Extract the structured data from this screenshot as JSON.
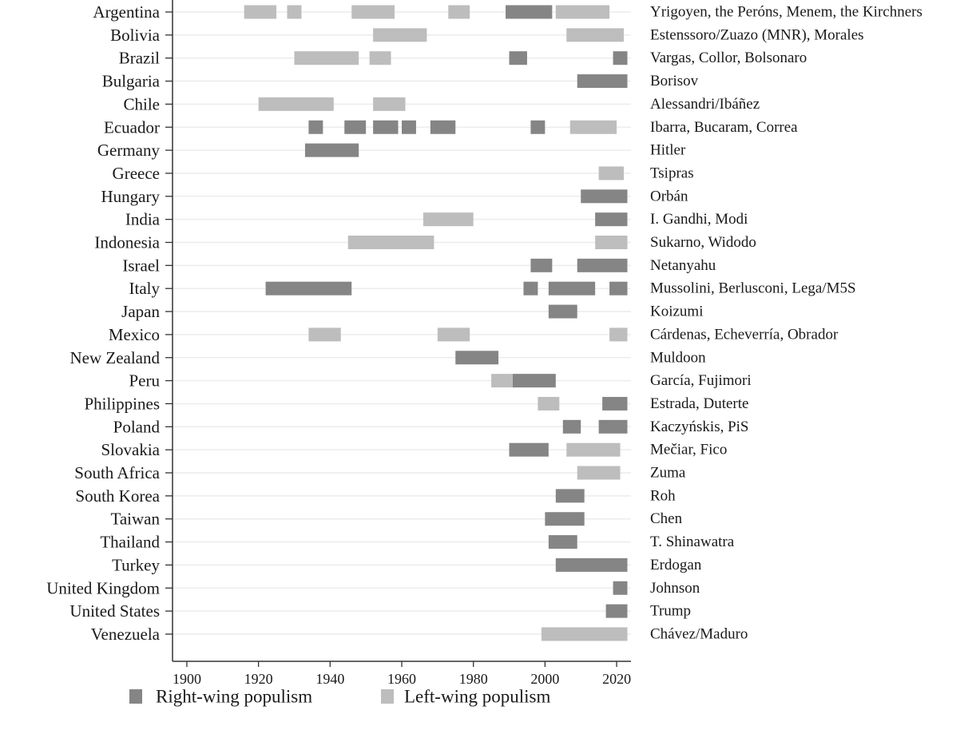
{
  "colors": {
    "right": "#858585",
    "left": "#bdbdbd",
    "grid": "#ececec",
    "axis": "#333333"
  },
  "chart_data": {
    "type": "bar",
    "orientation": "horizontal-timeline",
    "title": "",
    "xlabel": "",
    "ylabel": "",
    "xlim": [
      1896,
      2024
    ],
    "xticks": [
      1900,
      1920,
      1940,
      1960,
      1980,
      2000,
      2020
    ],
    "grid": true,
    "legend_position": "bottom",
    "legend": [
      {
        "key": "right",
        "label": "Right-wing populism"
      },
      {
        "key": "left",
        "label": "Left-wing populism"
      }
    ],
    "rows": [
      {
        "country": "Argentina",
        "leaders": "Yrigoyen, the Peróns, Menem, the Kirchners",
        "spans": [
          [
            1916,
            1925,
            "left"
          ],
          [
            1928,
            1932,
            "left"
          ],
          [
            1946,
            1958,
            "left"
          ],
          [
            1973,
            1979,
            "left"
          ],
          [
            1989,
            2002,
            "right"
          ],
          [
            2003,
            2018,
            "left"
          ]
        ]
      },
      {
        "country": "Bolivia",
        "leaders": "Estenssoro/Zuazo (MNR), Morales",
        "spans": [
          [
            1952,
            1967,
            "left"
          ],
          [
            2006,
            2022,
            "left"
          ]
        ]
      },
      {
        "country": "Brazil",
        "leaders": "Vargas, Collor, Bolsonaro",
        "spans": [
          [
            1930,
            1948,
            "left"
          ],
          [
            1951,
            1957,
            "left"
          ],
          [
            1990,
            1995,
            "right"
          ],
          [
            2019,
            2023,
            "right"
          ]
        ]
      },
      {
        "country": "Bulgaria",
        "leaders": "Borisov",
        "spans": [
          [
            2009,
            2023,
            "right"
          ]
        ]
      },
      {
        "country": "Chile",
        "leaders": "Alessandri/Ibáñez",
        "spans": [
          [
            1920,
            1941,
            "left"
          ],
          [
            1952,
            1961,
            "left"
          ]
        ]
      },
      {
        "country": "Ecuador",
        "leaders": "Ibarra, Bucaram, Correa",
        "spans": [
          [
            1934,
            1938,
            "right"
          ],
          [
            1944,
            1950,
            "right"
          ],
          [
            1952,
            1959,
            "right"
          ],
          [
            1960,
            1964,
            "right"
          ],
          [
            1968,
            1975,
            "right"
          ],
          [
            1996,
            2000,
            "right"
          ],
          [
            2007,
            2020,
            "left"
          ]
        ]
      },
      {
        "country": "Germany",
        "leaders": "Hitler",
        "spans": [
          [
            1933,
            1948,
            "right"
          ]
        ]
      },
      {
        "country": "Greece",
        "leaders": "Tsipras",
        "spans": [
          [
            2015,
            2022,
            "left"
          ]
        ]
      },
      {
        "country": "Hungary",
        "leaders": "Orbán",
        "spans": [
          [
            2010,
            2023,
            "right"
          ]
        ]
      },
      {
        "country": "India",
        "leaders": "I. Gandhi, Modi",
        "spans": [
          [
            1966,
            1980,
            "left"
          ],
          [
            2014,
            2023,
            "right"
          ]
        ]
      },
      {
        "country": "Indonesia",
        "leaders": "Sukarno, Widodo",
        "spans": [
          [
            1945,
            1969,
            "left"
          ],
          [
            2014,
            2023,
            "left"
          ]
        ]
      },
      {
        "country": "Israel",
        "leaders": "Netanyahu",
        "spans": [
          [
            1996,
            2002,
            "right"
          ],
          [
            2009,
            2023,
            "right"
          ]
        ]
      },
      {
        "country": "Italy",
        "leaders": "Mussolini, Berlusconi, Lega/M5S",
        "spans": [
          [
            1922,
            1946,
            "right"
          ],
          [
            1994,
            1998,
            "right"
          ],
          [
            2001,
            2014,
            "right"
          ],
          [
            2018,
            2023,
            "right"
          ]
        ]
      },
      {
        "country": "Japan",
        "leaders": "Koizumi",
        "spans": [
          [
            2001,
            2009,
            "right"
          ]
        ]
      },
      {
        "country": "Mexico",
        "leaders": "Cárdenas, Echeverría, Obrador",
        "spans": [
          [
            1934,
            1943,
            "left"
          ],
          [
            1970,
            1979,
            "left"
          ],
          [
            2018,
            2023,
            "left"
          ]
        ]
      },
      {
        "country": "New Zealand",
        "leaders": "Muldoon",
        "spans": [
          [
            1975,
            1987,
            "right"
          ]
        ]
      },
      {
        "country": "Peru",
        "leaders": "García, Fujimori",
        "spans": [
          [
            1985,
            1991,
            "left"
          ],
          [
            1991,
            2003,
            "right"
          ]
        ]
      },
      {
        "country": "Philippines",
        "leaders": "Estrada, Duterte",
        "spans": [
          [
            1998,
            2004,
            "left"
          ],
          [
            2016,
            2023,
            "right"
          ]
        ]
      },
      {
        "country": "Poland",
        "leaders": "Kaczyńskis, PiS",
        "spans": [
          [
            2005,
            2010,
            "right"
          ],
          [
            2015,
            2023,
            "right"
          ]
        ]
      },
      {
        "country": "Slovakia",
        "leaders": "Mečiar, Fico",
        "spans": [
          [
            1990,
            2001,
            "right"
          ],
          [
            2006,
            2021,
            "left"
          ]
        ]
      },
      {
        "country": "South Africa",
        "leaders": "Zuma",
        "spans": [
          [
            2009,
            2021,
            "left"
          ]
        ]
      },
      {
        "country": "South Korea",
        "leaders": "Roh",
        "spans": [
          [
            2003,
            2011,
            "right"
          ]
        ]
      },
      {
        "country": "Taiwan",
        "leaders": "Chen",
        "spans": [
          [
            2000,
            2011,
            "right"
          ]
        ]
      },
      {
        "country": "Thailand",
        "leaders": "T. Shinawatra",
        "spans": [
          [
            2001,
            2009,
            "right"
          ]
        ]
      },
      {
        "country": "Turkey",
        "leaders": "Erdogan",
        "spans": [
          [
            2003,
            2023,
            "right"
          ]
        ]
      },
      {
        "country": "United Kingdom",
        "leaders": "Johnson",
        "spans": [
          [
            2019,
            2023,
            "right"
          ]
        ]
      },
      {
        "country": "United States",
        "leaders": "Trump",
        "spans": [
          [
            2017,
            2023,
            "right"
          ]
        ]
      },
      {
        "country": "Venezuela",
        "leaders": "Chávez/Maduro",
        "spans": [
          [
            1999,
            2023,
            "left"
          ]
        ]
      }
    ]
  }
}
